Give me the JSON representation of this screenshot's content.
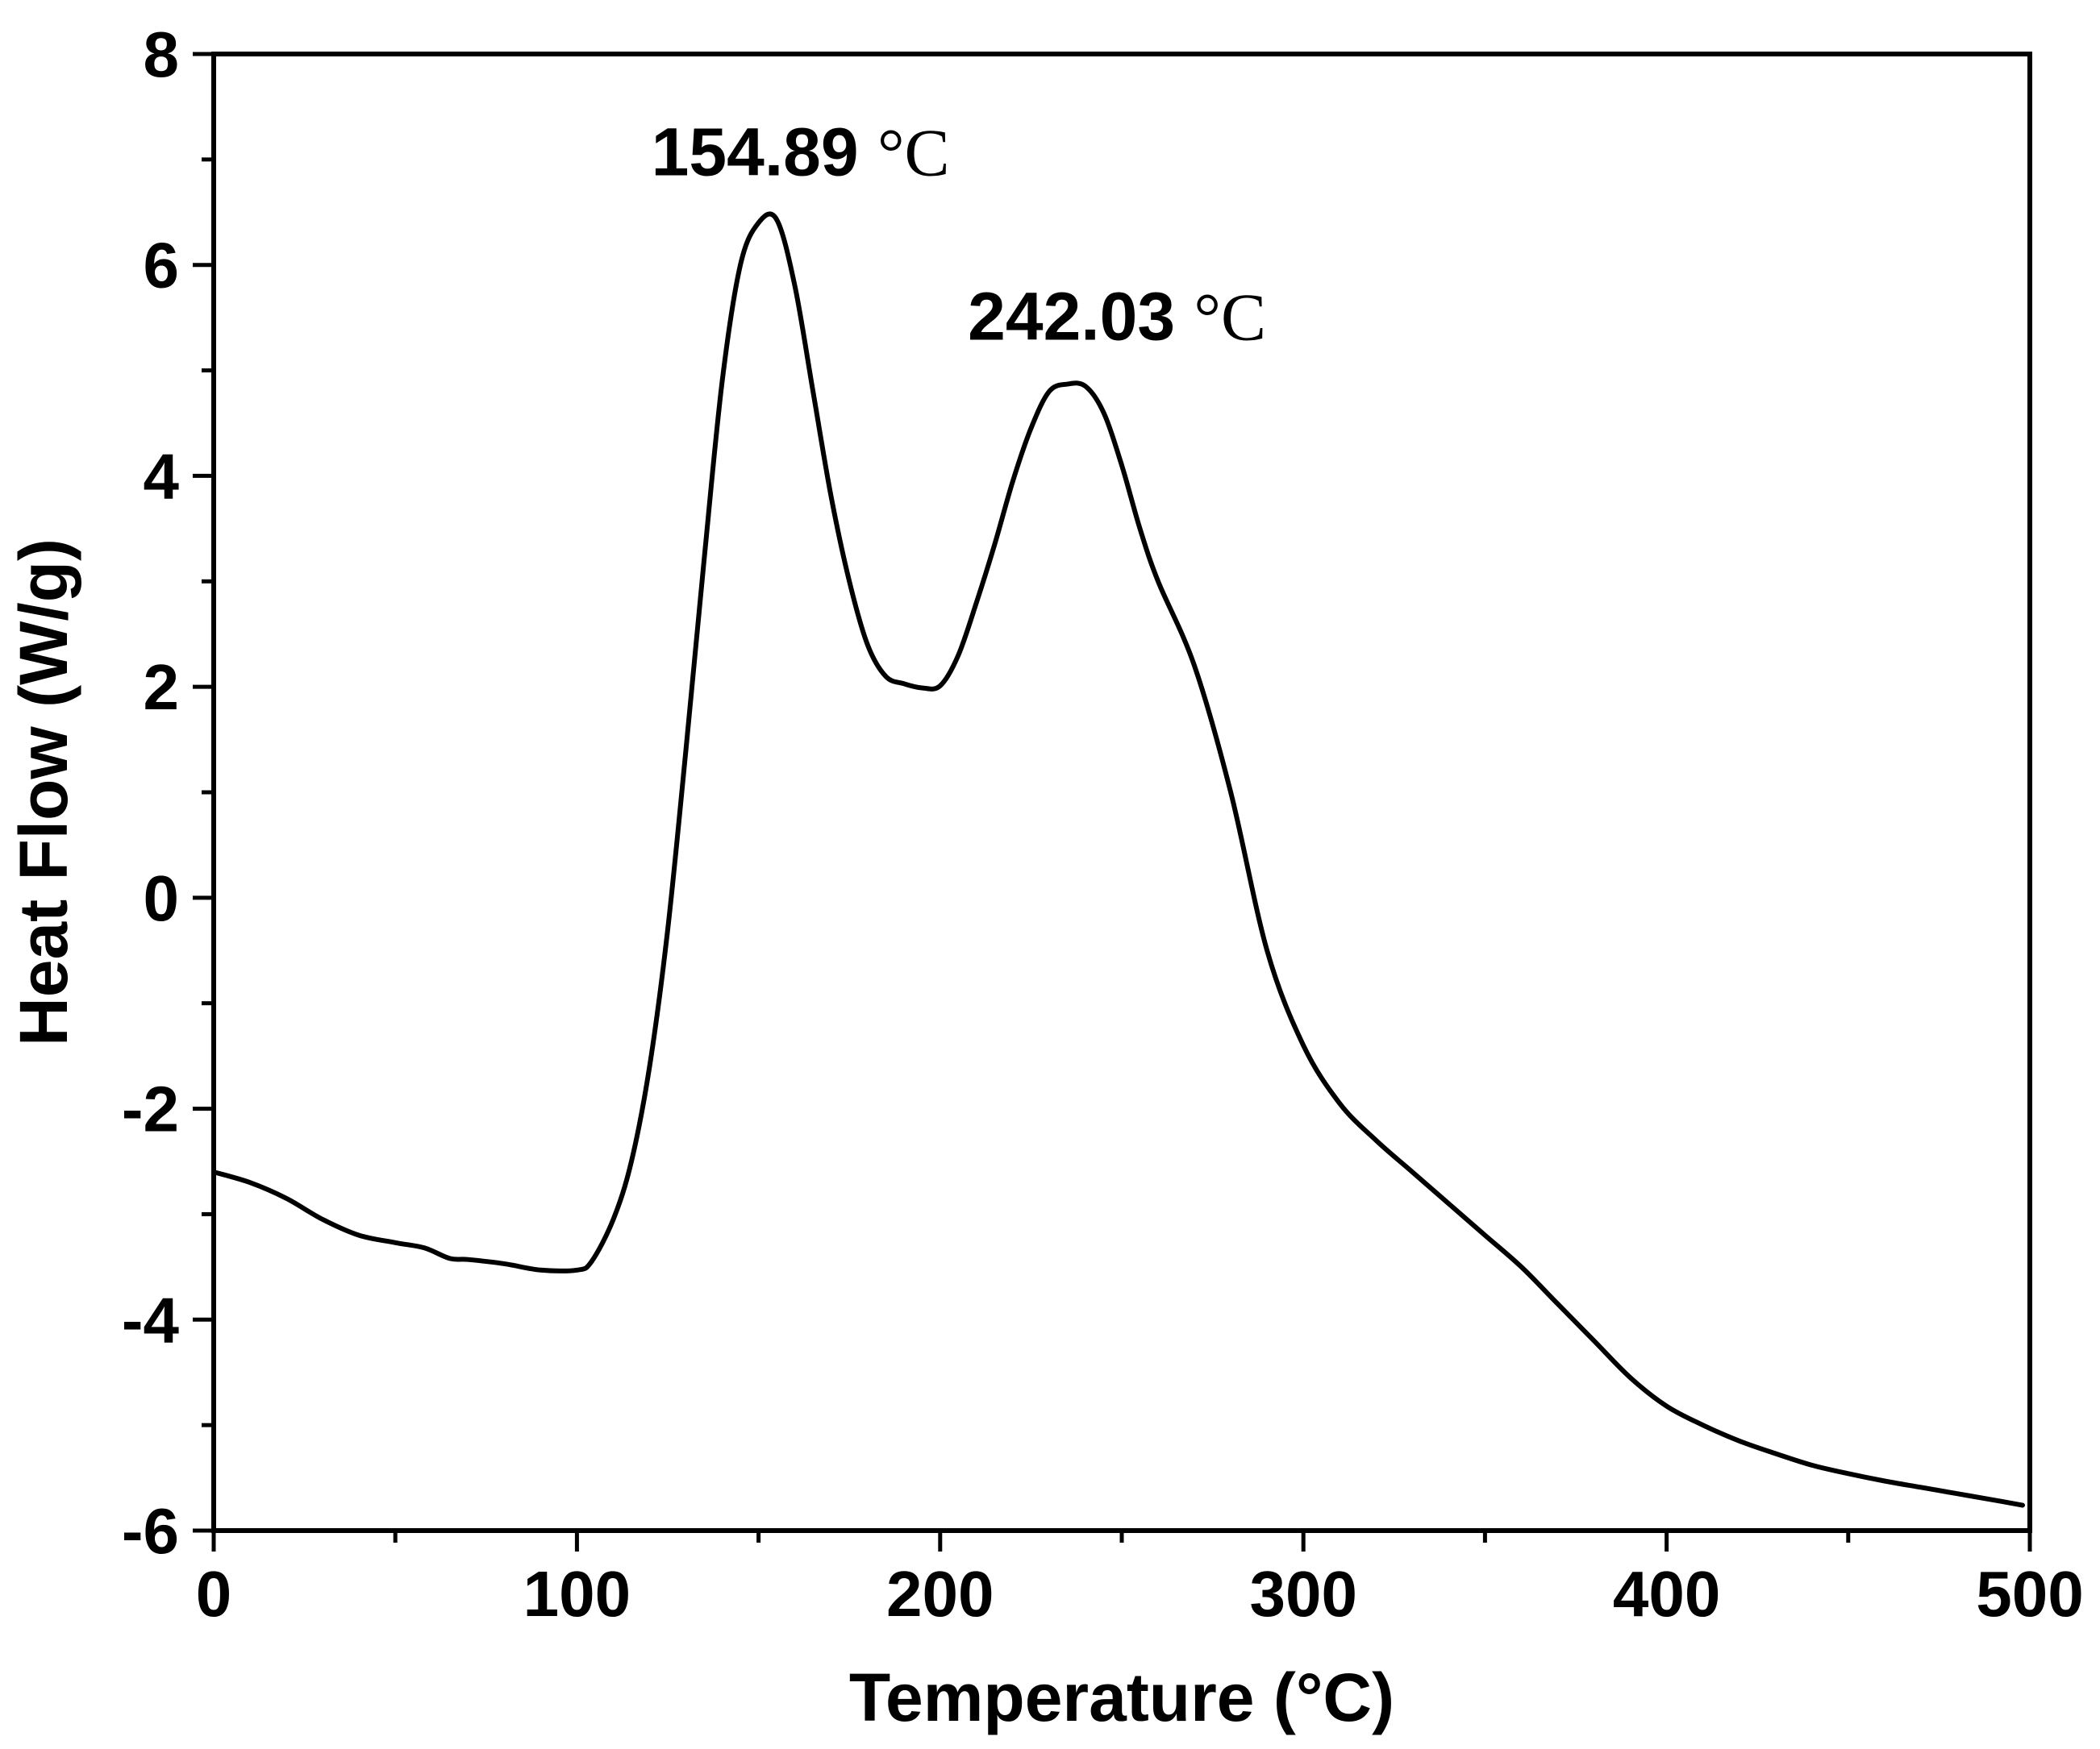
{
  "chart_data": {
    "type": "line",
    "title": "",
    "xlabel": "Temperature (°C)",
    "ylabel": "Heat Flow (W/g)",
    "xlim": [
      0,
      500
    ],
    "ylim": [
      -6,
      8
    ],
    "x_ticks": [
      0,
      100,
      200,
      300,
      400,
      500
    ],
    "x_tick_labels": [
      "0",
      "100",
      "200",
      "300",
      "400",
      "500"
    ],
    "y_ticks": [
      -6,
      -4,
      -2,
      0,
      2,
      4,
      6,
      8
    ],
    "y_tick_labels": [
      "-6",
      "-4",
      "-2",
      "0",
      "2",
      "4",
      "6",
      "8"
    ],
    "grid": false,
    "legend": "none",
    "line_color": "#000000",
    "series": [
      {
        "x": [
          0,
          10,
          20,
          30,
          40,
          50,
          58,
          65,
          70,
          80,
          90,
          100,
          104,
          110,
          115,
          120,
          125,
          130,
          135,
          140,
          145,
          150,
          155,
          160,
          165,
          170,
          175,
          180,
          185,
          190,
          195,
          200,
          205,
          210,
          215,
          220,
          225,
          230,
          235,
          240,
          245,
          250,
          255,
          260,
          270,
          280,
          290,
          300,
          310,
          320,
          330,
          340,
          350,
          360,
          370,
          380,
          390,
          400,
          410,
          420,
          430,
          440,
          450,
          460,
          470,
          480,
          490,
          498
        ],
        "y": [
          -2.6,
          -2.7,
          -2.85,
          -3.05,
          -3.2,
          -3.27,
          -3.32,
          -3.42,
          -3.43,
          -3.47,
          -3.53,
          -3.53,
          -3.45,
          -3.05,
          -2.5,
          -1.6,
          -0.3,
          1.4,
          3.2,
          4.9,
          6.0,
          6.4,
          6.43,
          5.8,
          4.8,
          3.8,
          3.0,
          2.4,
          2.1,
          2.03,
          1.99,
          2.01,
          2.3,
          2.8,
          3.35,
          3.95,
          4.45,
          4.8,
          4.87,
          4.85,
          4.6,
          4.1,
          3.5,
          3.0,
          2.2,
          1.0,
          -0.5,
          -1.4,
          -1.95,
          -2.3,
          -2.6,
          -2.9,
          -3.2,
          -3.5,
          -3.85,
          -4.2,
          -4.55,
          -4.82,
          -5.0,
          -5.15,
          -5.27,
          -5.38,
          -5.46,
          -5.53,
          -5.59,
          -5.65,
          -5.71,
          -5.76
        ]
      }
    ],
    "annotations": [
      {
        "label": "154.89",
        "unit": "°C",
        "x": 154.89,
        "y": 6.43
      },
      {
        "label": "242.03",
        "unit": "°C",
        "x": 242.03,
        "y": 4.87
      }
    ]
  }
}
